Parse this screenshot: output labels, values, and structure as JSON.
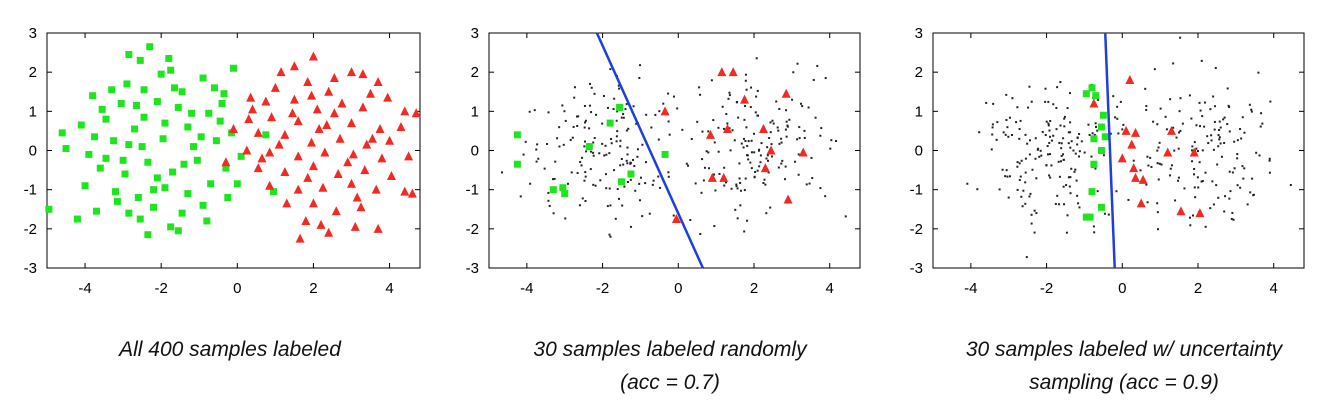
{
  "colors": {
    "class_a": "#1ee61e",
    "class_b": "#f22a22",
    "unlabeled": "#222222",
    "boundary": "#1d3fe0"
  },
  "chart_data": [
    {
      "type": "scatter",
      "title": "",
      "caption": [
        "All 400 samples labeled"
      ],
      "xlim": [
        -5,
        4.8
      ],
      "ylim": [
        -3,
        3
      ],
      "xticks": [
        -4,
        -2,
        0,
        2,
        4
      ],
      "yticks": [
        3,
        2,
        1,
        0,
        -1,
        -2,
        -3
      ],
      "series": [
        {
          "marker": "square",
          "color": "#1ee61e",
          "points": [
            [
              -2.3,
              2.65
            ],
            [
              -2.85,
              2.45
            ],
            [
              -2.55,
              2.3
            ],
            [
              -1.8,
              2.35
            ],
            [
              -2.0,
              1.95
            ],
            [
              -1.75,
              2.05
            ],
            [
              -0.9,
              1.85
            ],
            [
              -0.1,
              2.1
            ],
            [
              -3.8,
              1.4
            ],
            [
              -3.3,
              1.55
            ],
            [
              -2.9,
              1.7
            ],
            [
              -2.45,
              1.55
            ],
            [
              -1.45,
              1.5
            ],
            [
              -0.6,
              1.6
            ],
            [
              -3.55,
              1.05
            ],
            [
              -3.05,
              1.2
            ],
            [
              -2.1,
              1.25
            ],
            [
              -1.55,
              1.1
            ],
            [
              -0.4,
              1.2
            ],
            [
              -0.75,
              0.95
            ],
            [
              -0.35,
              1.45
            ],
            [
              -4.6,
              0.45
            ],
            [
              -4.1,
              0.65
            ],
            [
              -3.45,
              0.8
            ],
            [
              -2.7,
              0.55
            ],
            [
              -1.3,
              0.6
            ],
            [
              -0.45,
              0.75
            ],
            [
              -4.5,
              0.05
            ],
            [
              -3.9,
              -0.1
            ],
            [
              -3.25,
              0.25
            ],
            [
              -2.5,
              0.1
            ],
            [
              -1.95,
              0.3
            ],
            [
              -1.15,
              0.1
            ],
            [
              -0.55,
              0.25
            ],
            [
              -0.15,
              0.45
            ],
            [
              -3.6,
              -0.45
            ],
            [
              -2.95,
              -0.6
            ],
            [
              -2.35,
              -0.3
            ],
            [
              -1.7,
              -0.55
            ],
            [
              -1.05,
              -0.25
            ],
            [
              -0.3,
              -0.45
            ],
            [
              0.1,
              -0.15
            ],
            [
              0.75,
              0.4
            ],
            [
              -4.0,
              -0.9
            ],
            [
              -3.2,
              -1.05
            ],
            [
              -2.6,
              -1.2
            ],
            [
              -1.9,
              -0.95
            ],
            [
              -1.3,
              -1.1
            ],
            [
              -0.7,
              -0.85
            ],
            [
              0.0,
              -0.85
            ],
            [
              0.95,
              -1.05
            ],
            [
              -4.95,
              -1.5
            ],
            [
              -3.7,
              -1.55
            ],
            [
              -2.85,
              -1.6
            ],
            [
              -2.2,
              -1.45
            ],
            [
              -1.45,
              -1.6
            ],
            [
              -0.9,
              -1.4
            ],
            [
              -0.25,
              -1.2
            ],
            [
              -4.2,
              -1.75
            ],
            [
              -2.55,
              -1.75
            ],
            [
              -1.75,
              -1.95
            ],
            [
              -1.55,
              -2.05
            ],
            [
              -2.35,
              -2.15
            ],
            [
              -0.8,
              -1.8
            ],
            [
              -3.15,
              -1.3
            ],
            [
              -1.2,
              0.95
            ],
            [
              -2.85,
              0.15
            ],
            [
              -2.1,
              -0.7
            ],
            [
              -3.45,
              -0.2
            ],
            [
              -1.65,
              1.6
            ],
            [
              -2.45,
              0.85
            ],
            [
              -3.0,
              -0.25
            ],
            [
              -0.95,
              0.35
            ],
            [
              -1.4,
              -0.35
            ],
            [
              -2.65,
              1.15
            ],
            [
              -1.9,
              0.7
            ],
            [
              -3.75,
              0.35
            ],
            [
              -2.2,
              -1.0
            ]
          ]
        },
        {
          "marker": "triangle",
          "color": "#f22a22",
          "points": [
            [
              2.0,
              2.4
            ],
            [
              1.5,
              2.15
            ],
            [
              1.15,
              2.0
            ],
            [
              2.55,
              1.85
            ],
            [
              3.0,
              2.0
            ],
            [
              3.3,
              1.95
            ],
            [
              3.7,
              1.75
            ],
            [
              1.0,
              1.6
            ],
            [
              1.85,
              1.75
            ],
            [
              2.4,
              1.5
            ],
            [
              3.5,
              1.45
            ],
            [
              3.95,
              1.35
            ],
            [
              0.35,
              1.35
            ],
            [
              0.75,
              1.25
            ],
            [
              1.5,
              1.3
            ],
            [
              2.1,
              1.05
            ],
            [
              2.75,
              1.2
            ],
            [
              3.3,
              1.1
            ],
            [
              4.4,
              1.0
            ],
            [
              4.7,
              0.95
            ],
            [
              0.3,
              0.8
            ],
            [
              0.9,
              0.85
            ],
            [
              1.6,
              0.75
            ],
            [
              2.35,
              0.65
            ],
            [
              3.0,
              0.7
            ],
            [
              3.75,
              0.55
            ],
            [
              4.3,
              0.6
            ],
            [
              -0.1,
              0.55
            ],
            [
              0.55,
              0.45
            ],
            [
              1.25,
              0.4
            ],
            [
              1.95,
              0.2
            ],
            [
              2.7,
              0.3
            ],
            [
              3.4,
              0.15
            ],
            [
              4.0,
              0.25
            ],
            [
              0.25,
              0.0
            ],
            [
              0.85,
              -0.05
            ],
            [
              1.6,
              -0.15
            ],
            [
              2.3,
              -0.05
            ],
            [
              3.05,
              -0.1
            ],
            [
              3.8,
              -0.2
            ],
            [
              4.5,
              -0.15
            ],
            [
              -0.3,
              -0.3
            ],
            [
              0.55,
              -0.45
            ],
            [
              1.25,
              -0.55
            ],
            [
              2.0,
              -0.4
            ],
            [
              2.65,
              -0.6
            ],
            [
              3.35,
              -0.5
            ],
            [
              4.05,
              -0.65
            ],
            [
              0.85,
              -0.9
            ],
            [
              1.6,
              -1.0
            ],
            [
              2.25,
              -0.95
            ],
            [
              3.0,
              -0.85
            ],
            [
              3.65,
              -1.0
            ],
            [
              4.4,
              -1.05
            ],
            [
              4.6,
              -1.1
            ],
            [
              1.3,
              -1.35
            ],
            [
              2.0,
              -1.35
            ],
            [
              2.6,
              -1.55
            ],
            [
              3.25,
              -1.45
            ],
            [
              1.8,
              -1.8
            ],
            [
              2.2,
              -1.9
            ],
            [
              3.1,
              -1.95
            ],
            [
              3.7,
              -2.0
            ],
            [
              1.65,
              -2.25
            ],
            [
              2.4,
              -2.1
            ],
            [
              1.1,
              0.15
            ],
            [
              2.15,
              0.55
            ],
            [
              2.9,
              -0.3
            ],
            [
              1.45,
              0.95
            ],
            [
              3.55,
              0.3
            ],
            [
              1.85,
              -0.7
            ],
            [
              2.55,
              0.95
            ],
            [
              0.65,
              -0.2
            ],
            [
              3.15,
              -1.2
            ],
            [
              1.95,
              1.4
            ],
            [
              0.4,
              1.05
            ]
          ]
        }
      ]
    },
    {
      "type": "scatter",
      "title": "",
      "caption": [
        "30 samples labeled randomly",
        "(acc = 0.7)"
      ],
      "xlim": [
        -5,
        4.8
      ],
      "ylim": [
        -3,
        3
      ],
      "xticks": [
        -4,
        -2,
        0,
        2,
        4
      ],
      "yticks": [
        3,
        2,
        1,
        0,
        -1,
        -2,
        -3
      ],
      "boundary": [
        [
          -2.15,
          3.0
        ],
        [
          0.65,
          -3.0
        ]
      ],
      "series": [
        {
          "marker": "square",
          "color": "#1ee61e",
          "points": [
            [
              -4.25,
              0.4
            ],
            [
              -4.25,
              -0.35
            ],
            [
              -3.3,
              -1.0
            ],
            [
              -3.05,
              -0.95
            ],
            [
              -3.0,
              -1.1
            ],
            [
              -2.35,
              0.1
            ],
            [
              -1.55,
              1.1
            ],
            [
              -1.8,
              0.7
            ],
            [
              -1.5,
              -0.8
            ],
            [
              -1.25,
              -0.6
            ],
            [
              -0.35,
              -0.1
            ]
          ]
        },
        {
          "marker": "triangle",
          "color": "#f22a22",
          "points": [
            [
              -0.35,
              1.0
            ],
            [
              1.15,
              2.0
            ],
            [
              1.45,
              2.0
            ],
            [
              1.75,
              1.3
            ],
            [
              2.85,
              1.45
            ],
            [
              0.85,
              0.4
            ],
            [
              1.3,
              0.55
            ],
            [
              2.25,
              0.55
            ],
            [
              0.9,
              -0.7
            ],
            [
              1.2,
              -0.7
            ],
            [
              2.3,
              -0.45
            ],
            [
              2.45,
              0.0
            ],
            [
              3.3,
              -0.05
            ],
            [
              2.9,
              -1.25
            ],
            [
              -0.05,
              -1.75
            ]
          ]
        }
      ]
    },
    {
      "type": "scatter",
      "title": "",
      "caption": [
        "30 samples labeled w/ uncertainty",
        "sampling (acc = 0.9)"
      ],
      "xlim": [
        -5,
        4.8
      ],
      "ylim": [
        -3,
        3
      ],
      "xticks": [
        -4,
        -2,
        0,
        2,
        4
      ],
      "yticks": [
        3,
        2,
        1,
        0,
        -1,
        -2,
        -3
      ],
      "boundary": [
        [
          -0.45,
          3.0
        ],
        [
          -0.2,
          -3.0
        ]
      ],
      "series": [
        {
          "marker": "square",
          "color": "#1ee61e",
          "points": [
            [
              -0.95,
              1.45
            ],
            [
              -0.8,
              1.6
            ],
            [
              -0.7,
              1.4
            ],
            [
              -0.5,
              0.9
            ],
            [
              -0.55,
              0.6
            ],
            [
              -0.75,
              0.3
            ],
            [
              -0.55,
              0.0
            ],
            [
              -0.75,
              -0.35
            ],
            [
              -0.8,
              -1.05
            ],
            [
              -0.55,
              -1.45
            ],
            [
              -0.95,
              -1.7
            ],
            [
              -0.85,
              -1.7
            ],
            [
              -0.45,
              0.35
            ]
          ]
        },
        {
          "marker": "triangle",
          "color": "#f22a22",
          "points": [
            [
              -0.75,
              1.2
            ],
            [
              0.2,
              1.8
            ],
            [
              0.1,
              0.5
            ],
            [
              0.35,
              0.45
            ],
            [
              1.3,
              0.5
            ],
            [
              0.25,
              0.15
            ],
            [
              1.2,
              -0.05
            ],
            [
              1.9,
              -0.05
            ],
            [
              0.0,
              -0.2
            ],
            [
              0.3,
              -0.45
            ],
            [
              0.35,
              -0.7
            ],
            [
              0.55,
              -0.75
            ],
            [
              0.5,
              -1.35
            ],
            [
              1.55,
              -1.55
            ],
            [
              2.05,
              -1.6
            ]
          ]
        }
      ]
    }
  ]
}
